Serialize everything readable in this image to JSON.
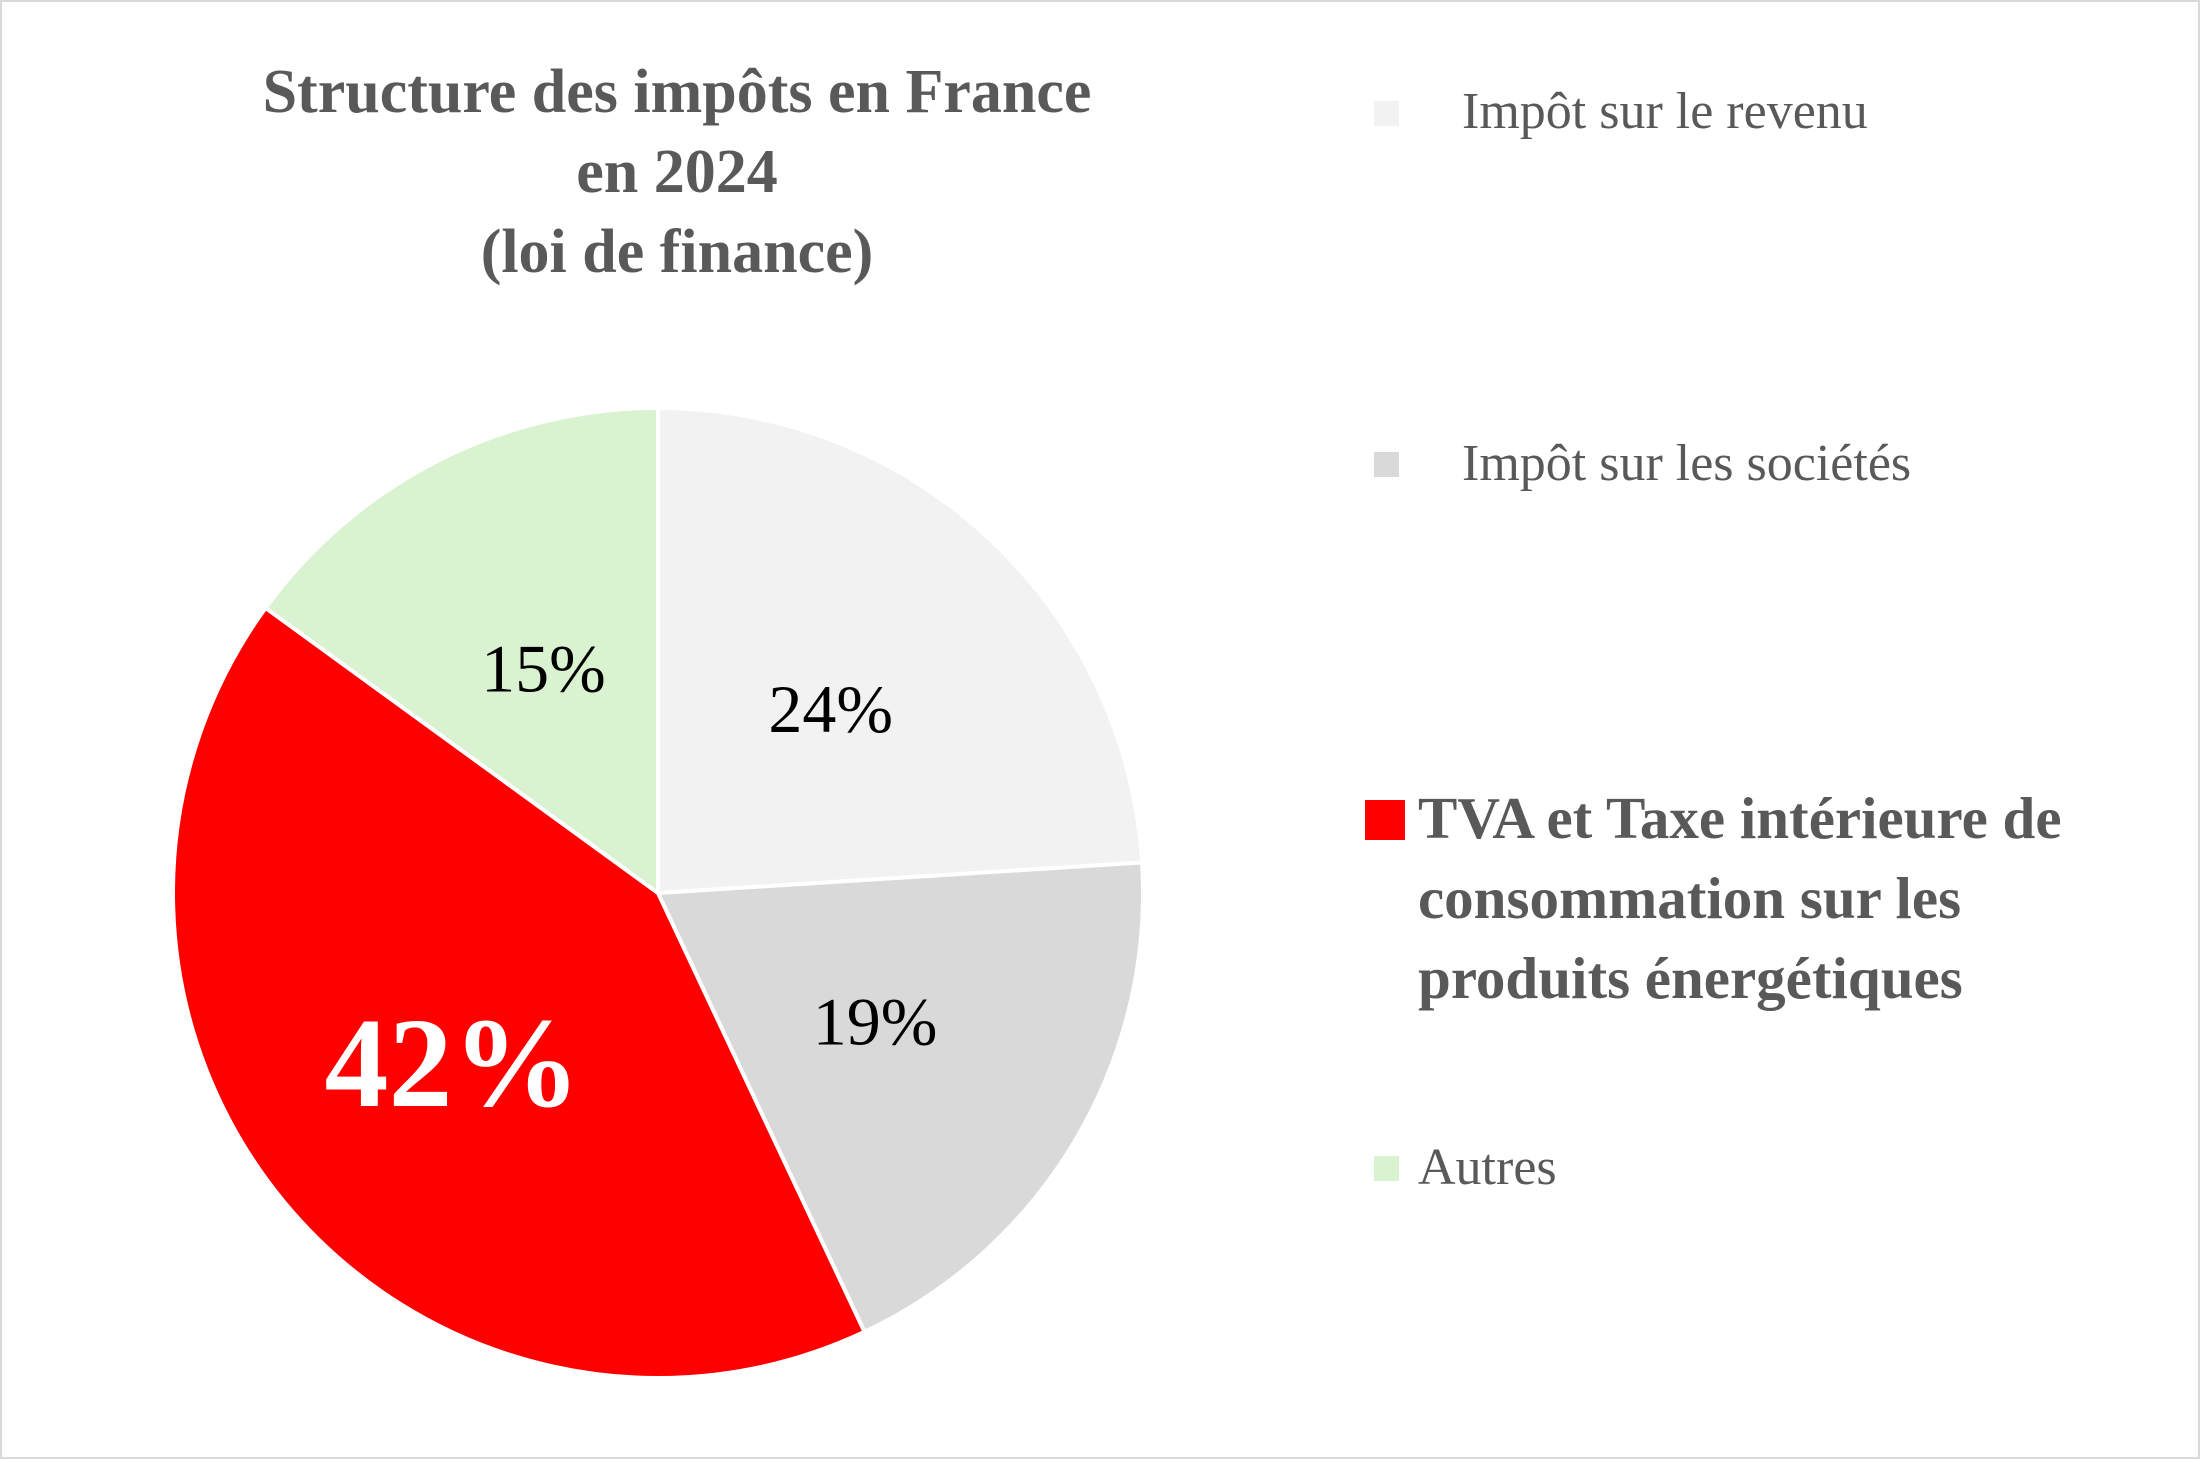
{
  "chart_data": {
    "type": "pie",
    "title": [
      "Structure des impôts en France",
      "en 2024",
      "(loi de finance)"
    ],
    "series": [
      {
        "name": "Impôt sur le revenu",
        "value": 24,
        "label": "24%",
        "color": "#f2f2f2",
        "label_color": "#000000",
        "emphasis": false
      },
      {
        "name": "Impôt sur les sociétés",
        "value": 19,
        "label": "19%",
        "color": "#d9d9d9",
        "label_color": "#000000",
        "emphasis": false
      },
      {
        "name": "TVA et Taxe intérieure de consommation sur les produits énergétiques",
        "value": 42,
        "label": "42%",
        "color": "#ff0000",
        "label_color": "#ffffff",
        "emphasis": true
      },
      {
        "name": "Autres",
        "value": 15,
        "label": "15%",
        "color": "#d9f2d0",
        "label_color": "#000000",
        "emphasis": false
      }
    ],
    "start_angle_deg": 0,
    "direction": "clockwise",
    "legend_position": "right",
    "value_unit": "%"
  }
}
